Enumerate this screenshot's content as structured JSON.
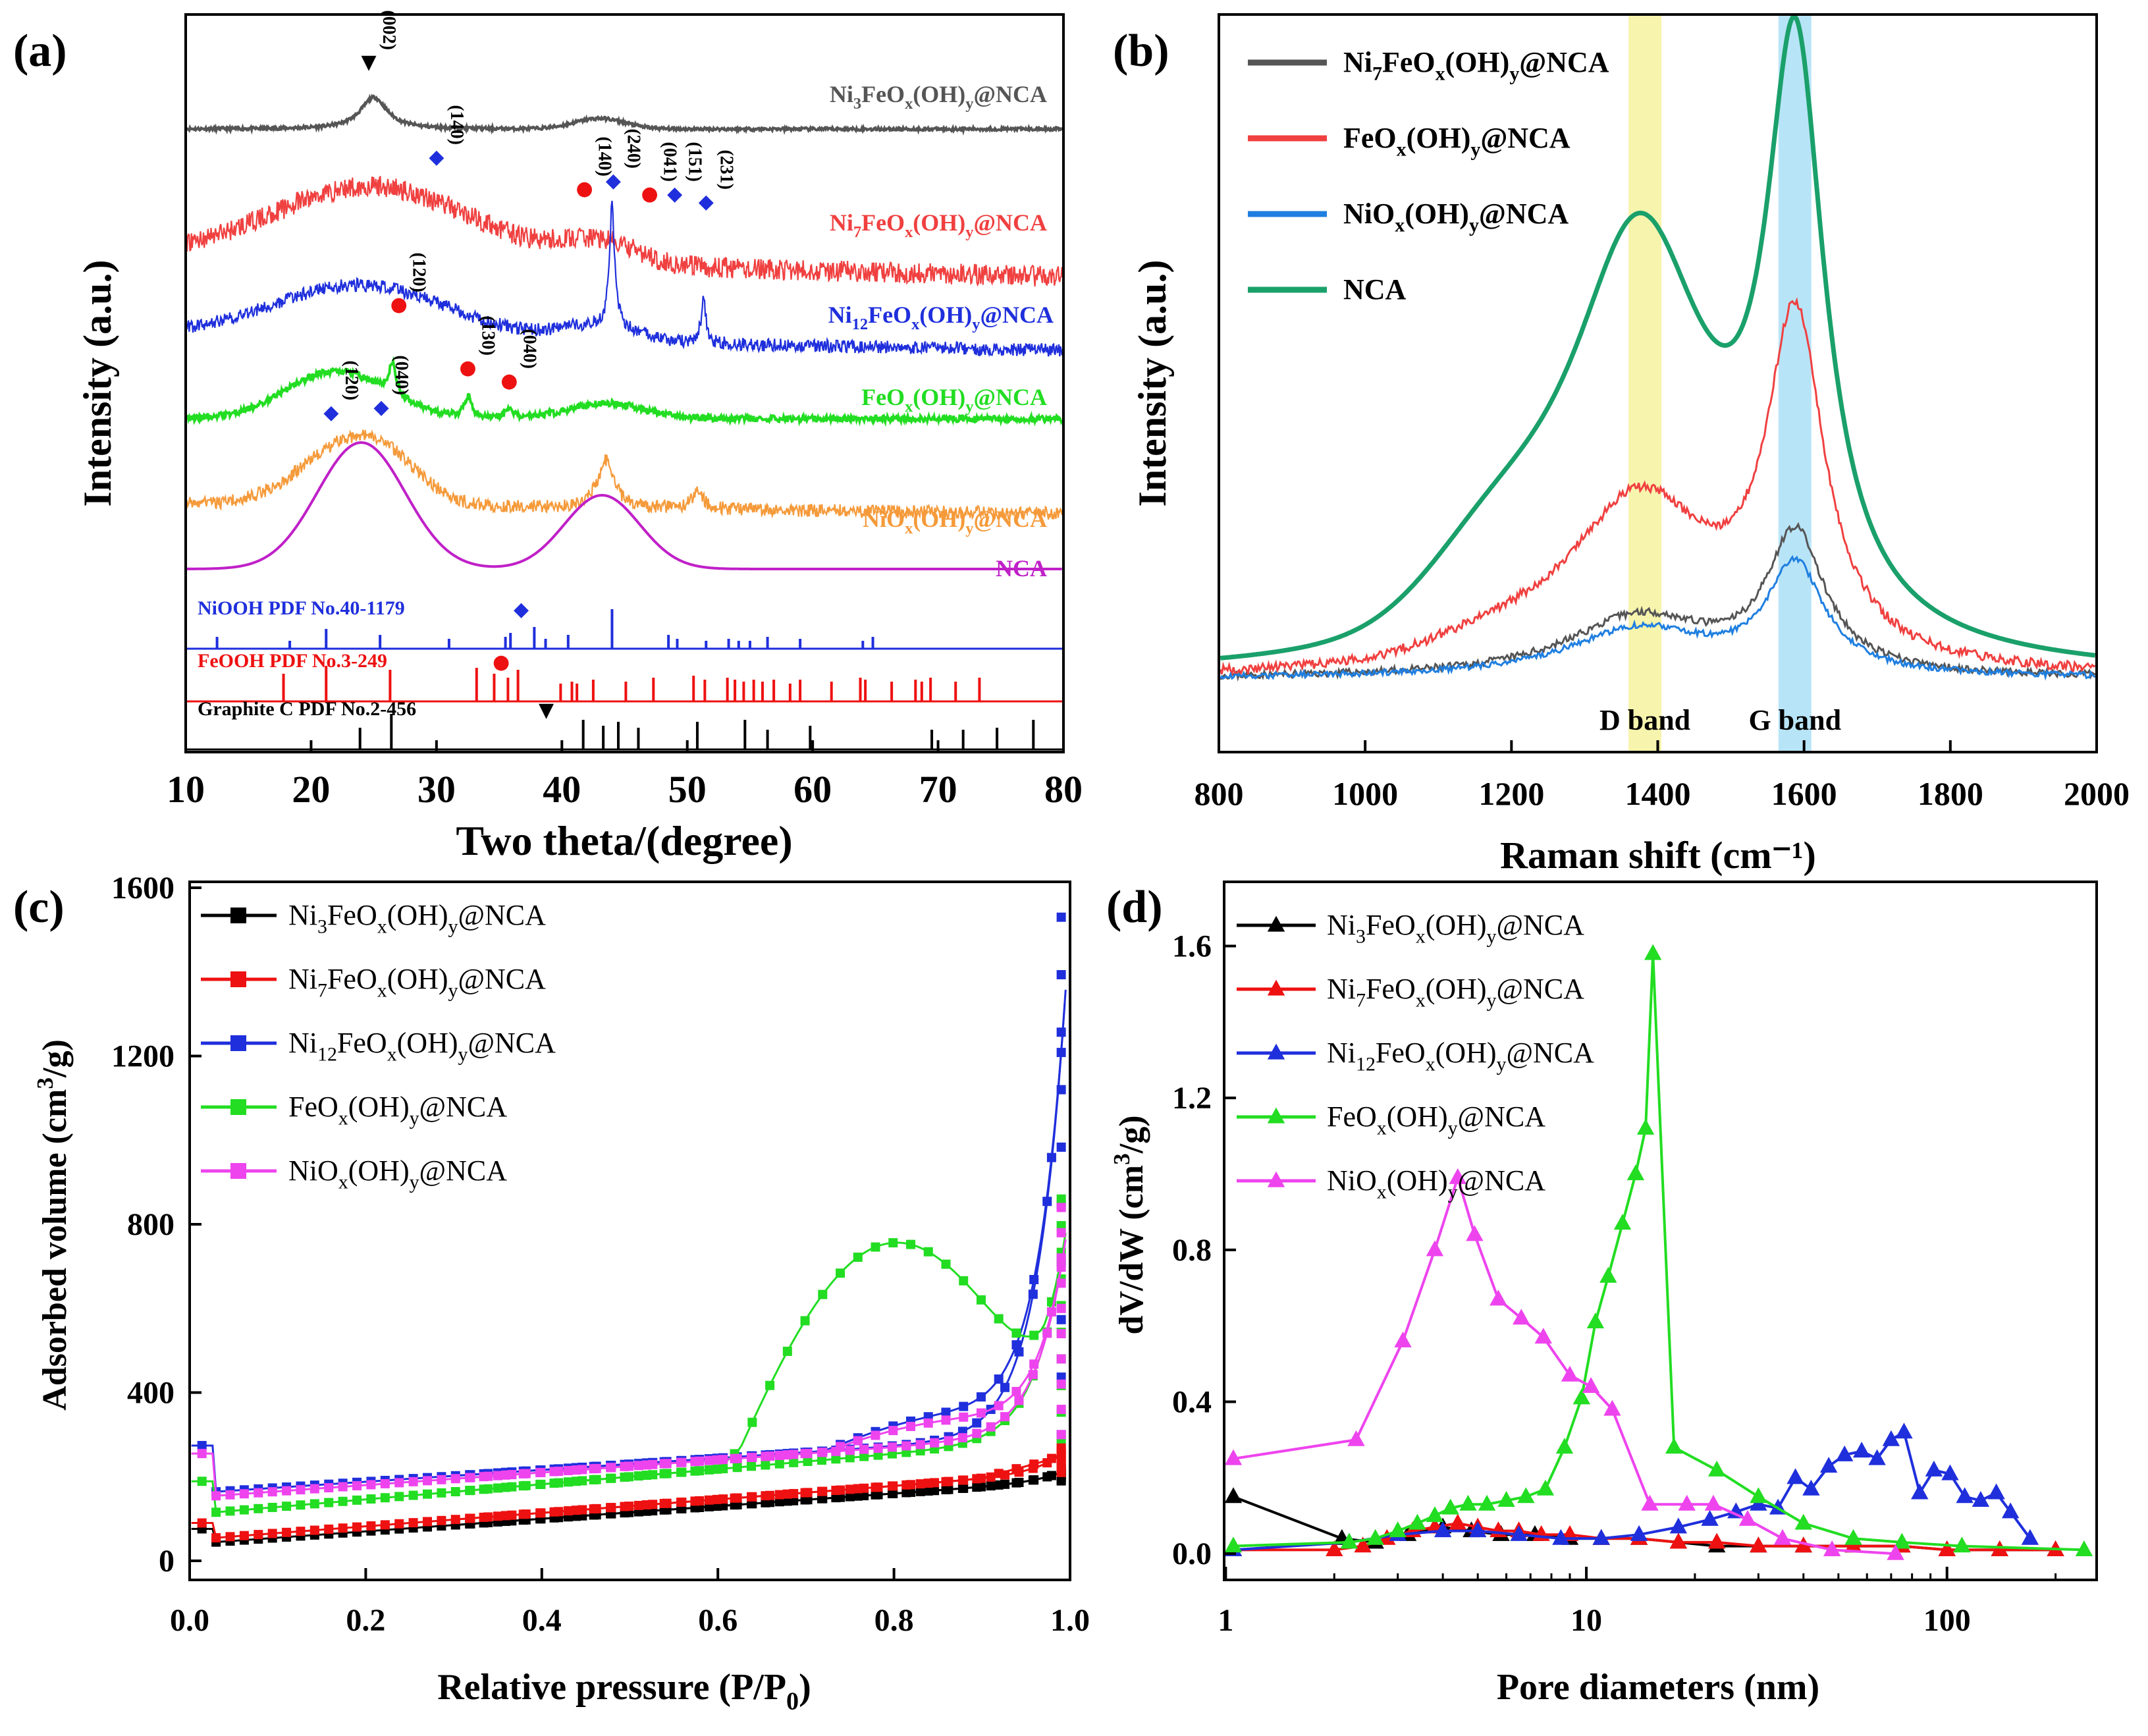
{
  "chart_data": [
    {
      "panel": "(a)",
      "type": "line",
      "xlabel": "Two theta/(degree)",
      "ylabel": "Intensity (a.u.)",
      "xlim": [
        10,
        80
      ],
      "xticks": [
        "10",
        "20",
        "30",
        "40",
        "50",
        "60",
        "70",
        "80"
      ],
      "series": [
        {
          "name": "Ni3FeOx(OH)y@NCA",
          "label": "Ni<sub>3</sub>FeO<sub>x</sub>(OH)<sub>y</sub>@NCA",
          "color": "#555555",
          "base": 0.855,
          "noise": 0.006,
          "peaks": [
            [
              25.0,
              1.3,
              0.06
            ],
            [
              43.0,
              2.0,
              0.02
            ]
          ]
        },
        {
          "name": "Ni7FeOx(OH)y@NCA",
          "label": "Ni<sub>7</sub>FeO<sub>x</sub>(OH)<sub>y</sub>@NCA",
          "color": "#f04040",
          "base": 0.615,
          "noise": 0.04,
          "peaks": [
            [
              25.0,
              8.0,
              0.14
            ],
            [
              43.0,
              3.0,
              0.04
            ]
          ],
          "slope": -0.04
        },
        {
          "name": "Ni12FeOx(OH)y@NCA",
          "label": "Ni<sub>12</sub>FeO<sub>x</sub>(OH)<sub>y</sub>@NCA",
          "color": "#1f2fdc",
          "base": 0.465,
          "noise": 0.025,
          "peaks": [
            [
              24.0,
              7.0,
              0.1
            ],
            [
              44.0,
              0.25,
              0.23
            ],
            [
              51.3,
              0.25,
              0.08
            ],
            [
              43.0,
              3.0,
              0.03
            ]
          ],
          "slope": -0.03
        },
        {
          "name": "FeOx(OH)y@NCA",
          "label": "FeO<sub>x</sub>(OH)<sub>y</sub>@NCA",
          "color": "#22dd22",
          "base": 0.305,
          "noise": 0.012,
          "peaks": [
            [
              22.0,
              4.0,
              0.09
            ],
            [
              26.5,
              0.35,
              0.06
            ],
            [
              32.5,
              0.35,
              0.04
            ],
            [
              35.8,
              0.35,
              0.02
            ],
            [
              43.5,
              3.0,
              0.03
            ]
          ]
        },
        {
          "name": "NiOx(OH)y@NCA",
          "label": "NiO<sub>x</sub>(OH)<sub>y</sub>@NCA",
          "color": "#f59a3a",
          "base": 0.145,
          "noise": 0.025,
          "peaks": [
            [
              22.0,
              3.5,
              0.09
            ],
            [
              26.0,
              3.0,
              0.07
            ],
            [
              43.5,
              0.8,
              0.09
            ],
            [
              50.8,
              0.6,
              0.03
            ]
          ],
          "slope": -0.02
        },
        {
          "name": "NCA",
          "label": "NCA",
          "color": "#c020c8",
          "base": 0.02,
          "noise": 0.0,
          "peaks": [
            [
              24.0,
              3.5,
              0.24
            ],
            [
              43.2,
              3.0,
              0.14
            ]
          ]
        }
      ],
      "references": [
        {
          "name": "NiOOH PDF No.40-1179",
          "symbol": "◆",
          "color": "#1f2fdc",
          "lines": [
            12.5,
            18.3,
            21.2,
            25.5,
            31.0,
            35.5,
            35.9,
            37.8,
            38.7,
            40.5,
            44.0,
            48.5,
            49.2,
            51.5,
            53.3,
            54.1,
            55.0,
            56.4,
            59.0,
            64.0,
            64.8
          ],
          "heights": [
            0.3,
            0.2,
            0.5,
            0.35,
            0.25,
            0.3,
            0.4,
            0.55,
            0.25,
            0.35,
            1.0,
            0.35,
            0.25,
            0.2,
            0.25,
            0.2,
            0.2,
            0.3,
            0.25,
            0.2,
            0.3
          ]
        },
        {
          "name": "FeOOH PDF No.3-249",
          "symbol": "●",
          "color": "#ee1111",
          "lines": [
            17.8,
            21.2,
            26.3,
            33.2,
            34.6,
            35.7,
            36.5,
            39.9,
            40.8,
            41.2,
            42.5,
            45.1,
            47.3,
            50.5,
            51.4,
            53.2,
            53.8,
            54.5,
            55.3,
            56.0,
            56.9,
            58.2,
            59.0,
            61.5,
            63.8,
            64.2,
            66.3,
            68.2,
            68.7,
            69.4,
            71.4,
            73.3
          ],
          "heights": [
            0.7,
            0.9,
            0.8,
            0.85,
            0.7,
            0.6,
            0.8,
            0.45,
            0.5,
            0.45,
            0.55,
            0.5,
            0.6,
            0.65,
            0.55,
            0.6,
            0.55,
            0.5,
            0.55,
            0.5,
            0.55,
            0.45,
            0.55,
            0.5,
            0.6,
            0.55,
            0.5,
            0.55,
            0.5,
            0.6,
            0.5,
            0.6
          ]
        },
        {
          "name": "Graphite C PDF No.2-456",
          "symbol": "▼",
          "color": "#000000",
          "lines": [
            23.9,
            26.4,
            41.7,
            43.3,
            44.5,
            46.1,
            50.8,
            54.6,
            56.4,
            59.8,
            69.5,
            72.0,
            74.7,
            77.6
          ],
          "heights": [
            0.55,
            0.9,
            0.75,
            0.6,
            0.7,
            0.55,
            0.7,
            0.75,
            0.5,
            0.6,
            0.5,
            0.5,
            0.55,
            0.75
          ]
        }
      ],
      "annotations": [
        {
          "text": "(002)",
          "symbol": "▼",
          "color": "#000000",
          "x": 24.6,
          "level": 0.97
        },
        {
          "text": "(140)",
          "symbol": "◆",
          "color": "#1f2fdc",
          "x": 30.0,
          "level": 0.79
        },
        {
          "text": "(140)",
          "symbol": "●",
          "color": "#ee1111",
          "x": 41.8,
          "level": 0.73
        },
        {
          "text": "(240)",
          "symbol": "◆",
          "color": "#1f2fdc",
          "x": 44.1,
          "level": 0.745
        },
        {
          "text": "(041)",
          "symbol": "●",
          "color": "#ee1111",
          "x": 47.0,
          "level": 0.72
        },
        {
          "text": "(151)",
          "symbol": "◆",
          "color": "#1f2fdc",
          "x": 49.0,
          "level": 0.72
        },
        {
          "text": "(231)",
          "symbol": "◆",
          "color": "#1f2fdc",
          "x": 51.5,
          "level": 0.705
        },
        {
          "text": "(120)",
          "symbol": "●",
          "color": "#ee1111",
          "x": 27.0,
          "level": 0.51
        },
        {
          "text": "(130)",
          "symbol": "●",
          "color": "#ee1111",
          "x": 32.5,
          "level": 0.39
        },
        {
          "text": "(040)",
          "symbol": "●",
          "color": "#ee1111",
          "x": 35.8,
          "level": 0.365
        },
        {
          "text": "(120)",
          "symbol": "◆",
          "color": "#1f2fdc",
          "x": 21.6,
          "level": 0.305
        },
        {
          "text": "(040)",
          "symbol": "◆",
          "color": "#1f2fdc",
          "x": 25.6,
          "level": 0.315
        }
      ]
    },
    {
      "panel": "(b)",
      "type": "line",
      "xlabel": "Raman shift (cm⁻¹)",
      "ylabel": "Intensity (a.u.)",
      "xlim": [
        800,
        2000
      ],
      "xticks": [
        "800",
        "1000",
        "1200",
        "1400",
        "1600",
        "1800",
        "2000"
      ],
      "bands": [
        {
          "label": "D band",
          "from": 1360,
          "to": 1405,
          "color": "#f4f08a"
        },
        {
          "label": "G band",
          "from": 1565,
          "to": 1610,
          "color": "#9ad8f4"
        }
      ],
      "series": [
        {
          "name": "Ni7FeOx(OH)y@NCA",
          "label": "Ni<sub>7</sub>FeO<sub>x</sub>(OH)<sub>y</sub>@NCA",
          "color": "#555555",
          "dpeak": 0.1,
          "gpeak": 0.23,
          "shoulder": 0.0,
          "noise": 0.012
        },
        {
          "name": "FeOx(OH)y@NCA",
          "label": "FeO<sub>x</sub>(OH)<sub>y</sub>@NCA",
          "color": "#f04040",
          "dpeak": 0.29,
          "gpeak": 0.56,
          "shoulder": 0.03,
          "noise": 0.016
        },
        {
          "name": "NiOx(OH)y@NCA",
          "label": "NiO<sub>x</sub>(OH)<sub>y</sub>@NCA",
          "color": "#1f7fe0",
          "dpeak": 0.08,
          "gpeak": 0.18,
          "shoulder": 0.0,
          "noise": 0.01
        },
        {
          "name": "NCA",
          "label": "NCA",
          "color": "#1aa06a",
          "dpeak": 0.72,
          "gpeak": 0.93,
          "shoulder": 0.12,
          "noise": 0.0
        }
      ]
    },
    {
      "panel": "(c)",
      "type": "line",
      "xlabel": "Relative pressure (P/P<sub>0</sub>)",
      "ylabel": "Adsorbed volume (cm<sup>3</sup>/g)",
      "xlim": [
        0.0,
        1.0
      ],
      "ylim": [
        0,
        1600
      ],
      "xticks": [
        "0.0",
        "0.2",
        "0.4",
        "0.6",
        "0.8",
        "1.0"
      ],
      "yticks": [
        "0",
        "400",
        "800",
        "1200",
        "1600"
      ],
      "series": [
        {
          "name": "Ni3FeOx(OH)y@NCA",
          "label": "Ni<sub>3</sub>FeO<sub>x</sub>(OH)<sub>y</sub>@NCA",
          "color": "#000000",
          "start": 40,
          "v0": 40,
          "slope": 150,
          "top": 220,
          "hyst": 0,
          "hstart": 0.9
        },
        {
          "name": "Ni7FeOx(OH)y@NCA",
          "label": "Ni<sub>7</sub>FeO<sub>x</sub>(OH)<sub>y</sub>@NCA",
          "color": "#ee1111",
          "start": 45,
          "v0": 50,
          "slope": 160,
          "top": 270,
          "hyst": 10,
          "hstart": 0.9
        },
        {
          "name": "Ni12FeOx(OH)y@NCA",
          "label": "Ni<sub>12</sub>FeO<sub>x</sub>(OH)<sub>y</sub>@NCA",
          "color": "#1f2fdc",
          "start": 130,
          "v0": 160,
          "slope": 140,
          "top": 1530,
          "hyst": 60,
          "hstart": 0.72
        },
        {
          "name": "FeOx(OH)y@NCA",
          "label": "FeO<sub>x</sub>(OH)<sub>y</sub>@NCA",
          "color": "#22dd22",
          "start": 90,
          "v0": 110,
          "slope": 180,
          "top": 860,
          "hyst": 220,
          "hstart": 0.6
        },
        {
          "name": "NiOx(OH)y@NCA",
          "label": "NiO<sub>x</sub>(OH)<sub>y</sub>@NCA",
          "color": "#ee44ee",
          "start": 120,
          "v0": 150,
          "slope": 150,
          "top": 840,
          "hyst": 50,
          "hstart": 0.72
        }
      ]
    },
    {
      "panel": "(d)",
      "type": "line",
      "xscale": "log",
      "xlabel": "Pore diameters (nm)",
      "ylabel": "dV/dW (cm<sup>3</sup>/g)",
      "xlim": [
        1,
        260
      ],
      "ylim": [
        -0.05,
        1.75
      ],
      "xticks": [
        "1",
        "10",
        "100"
      ],
      "yticks": [
        "0.0",
        "0.4",
        "0.8",
        "1.2",
        "1.6"
      ],
      "series": [
        {
          "name": "Ni3FeOx(OH)y@NCA",
          "label": "Ni<sub>3</sub>FeO<sub>x</sub>(OH)<sub>y</sub>@NCA",
          "color": "#000000",
          "x": [
            1.05,
            2.1,
            2.6,
            3.2,
            4.0,
            4.8,
            5.8,
            7.2,
            9.0,
            11.0,
            14.0,
            18.0,
            23.0,
            30.0,
            40.0,
            55.0,
            75.0,
            100.0,
            140.0,
            200.0
          ],
          "y": [
            0.15,
            0.04,
            0.03,
            0.05,
            0.07,
            0.06,
            0.05,
            0.05,
            0.04,
            0.04,
            0.04,
            0.03,
            0.02,
            0.02,
            0.02,
            0.02,
            0.02,
            0.01,
            0.01,
            0.01
          ]
        },
        {
          "name": "Ni7FeOx(OH)y@NCA",
          "label": "Ni<sub>7</sub>FeO<sub>x</sub>(OH)<sub>y</sub>@NCA",
          "color": "#ee1111",
          "x": [
            1.05,
            2.0,
            2.4,
            2.8,
            3.3,
            3.8,
            4.4,
            5.0,
            5.7,
            6.5,
            7.5,
            9.0,
            11.0,
            14.0,
            18.0,
            23.0,
            30.0,
            40.0,
            55.0,
            75.0,
            100.0,
            140.0,
            200.0
          ],
          "y": [
            0.01,
            0.01,
            0.02,
            0.04,
            0.06,
            0.07,
            0.08,
            0.07,
            0.06,
            0.06,
            0.05,
            0.05,
            0.04,
            0.04,
            0.03,
            0.03,
            0.02,
            0.02,
            0.02,
            0.02,
            0.01,
            0.01,
            0.01
          ]
        },
        {
          "name": "Ni12FeOx(OH)y@NCA",
          "label": "Ni<sub>12</sub>FeO<sub>x</sub>(OH)<sub>y</sub>@NCA",
          "color": "#1f2fdc",
          "x": [
            1.05,
            2.2,
            3.0,
            4.0,
            5.0,
            6.5,
            8.5,
            11.0,
            14.0,
            18.0,
            22.0,
            26.0,
            30.0,
            34.0,
            38.0,
            42.0,
            47.0,
            52.0,
            58.0,
            64.0,
            70.0,
            76.0,
            84.0,
            92.0,
            102.0,
            112.0,
            124.0,
            137.0,
            150.0,
            170.0
          ],
          "y": [
            0.01,
            0.03,
            0.05,
            0.06,
            0.06,
            0.05,
            0.04,
            0.04,
            0.05,
            0.07,
            0.09,
            0.11,
            0.13,
            0.12,
            0.2,
            0.17,
            0.23,
            0.26,
            0.27,
            0.25,
            0.3,
            0.32,
            0.16,
            0.22,
            0.21,
            0.15,
            0.14,
            0.16,
            0.11,
            0.04
          ]
        },
        {
          "name": "FeOx(OH)y@NCA",
          "label": "FeO<sub>x</sub>(OH)<sub>y</sub>@NCA",
          "color": "#22dd22",
          "x": [
            1.05,
            2.2,
            2.6,
            3.0,
            3.4,
            3.8,
            4.2,
            4.7,
            5.3,
            6.0,
            6.8,
            7.7,
            8.7,
            9.7,
            10.6,
            11.5,
            12.6,
            13.7,
            14.6,
            15.3,
            17.5,
            23.0,
            30.0,
            40.0,
            55.0,
            75.0,
            110.0,
            240.0
          ],
          "y": [
            0.02,
            0.03,
            0.04,
            0.06,
            0.08,
            0.1,
            0.12,
            0.13,
            0.13,
            0.14,
            0.15,
            0.17,
            0.28,
            0.41,
            0.61,
            0.73,
            0.87,
            1.0,
            1.12,
            1.58,
            0.28,
            0.22,
            0.15,
            0.08,
            0.04,
            0.03,
            0.02,
            0.01
          ]
        },
        {
          "name": "NiOx(OH)y@NCA",
          "label": "NiO<sub>x</sub>(OH)<sub>y</sub>@NCA",
          "color": "#ee44ee",
          "x": [
            1.05,
            2.3,
            3.1,
            3.8,
            4.4,
            4.9,
            5.7,
            6.6,
            7.6,
            9.0,
            10.3,
            11.8,
            15.0,
            19.0,
            22.5,
            28.0,
            35.0,
            48.0,
            72.0
          ],
          "y": [
            0.25,
            0.3,
            0.56,
            0.8,
            0.99,
            0.84,
            0.67,
            0.62,
            0.57,
            0.47,
            0.44,
            0.38,
            0.13,
            0.13,
            0.13,
            0.09,
            0.04,
            0.01,
            0.0
          ]
        }
      ]
    }
  ]
}
